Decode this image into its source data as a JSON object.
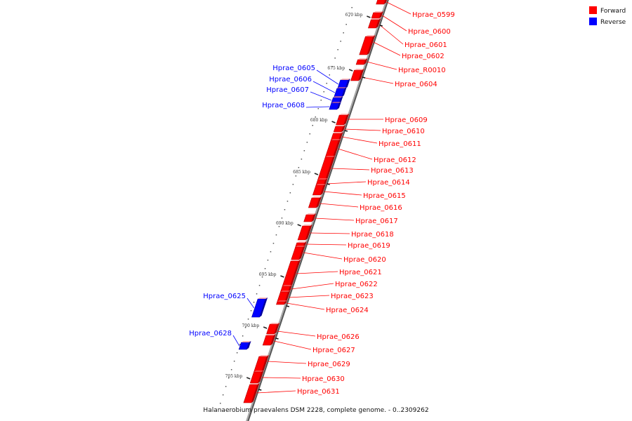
{
  "colors": {
    "forward": "#ff0000",
    "reverse": "#0000ff",
    "backbone": "#888888",
    "dark_forward": "#b00000",
    "dark_reverse": "#0000a0"
  },
  "legend": {
    "forward": "Forward",
    "reverse": "Reverse"
  },
  "caption": "Halanaerobium praevalens DSM 2228, complete genome. - 0..2309262",
  "kbp_ticks": [
    "670 kbp",
    "675 kbp",
    "680 kbp",
    "685 kbp",
    "690 kbp",
    "695 kbp",
    "700 kbp",
    "705 kbp"
  ],
  "forward_genes": [
    {
      "label": "Hprae_0599"
    },
    {
      "label": "Hprae_0600"
    },
    {
      "label": "Hprae_0601"
    },
    {
      "label": "Hprae_0602"
    },
    {
      "label": "Hprae_R0010"
    },
    {
      "label": "Hprae_0604"
    },
    {
      "label": "Hprae_0609"
    },
    {
      "label": "Hprae_0610"
    },
    {
      "label": "Hprae_0611"
    },
    {
      "label": "Hprae_0612"
    },
    {
      "label": "Hprae_0613"
    },
    {
      "label": "Hprae_0614"
    },
    {
      "label": "Hprae_0615"
    },
    {
      "label": "Hprae_0616"
    },
    {
      "label": "Hprae_0617"
    },
    {
      "label": "Hprae_0618"
    },
    {
      "label": "Hprae_0619"
    },
    {
      "label": "Hprae_0620"
    },
    {
      "label": "Hprae_0621"
    },
    {
      "label": "Hprae_0622"
    },
    {
      "label": "Hprae_0623"
    },
    {
      "label": "Hprae_0624"
    },
    {
      "label": "Hprae_0626"
    },
    {
      "label": "Hprae_0627"
    },
    {
      "label": "Hprae_0629"
    },
    {
      "label": "Hprae_0630"
    },
    {
      "label": "Hprae_0631"
    }
  ],
  "reverse_genes": [
    {
      "label": "Hprae_0605"
    },
    {
      "label": "Hprae_0606"
    },
    {
      "label": "Hprae_0607"
    },
    {
      "label": "Hprae_0608"
    },
    {
      "label": "Hprae_0625"
    },
    {
      "label": "Hprae_0628"
    }
  ]
}
